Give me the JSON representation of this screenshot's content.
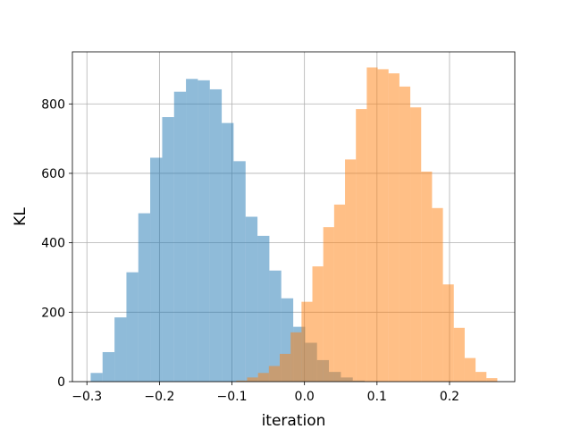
{
  "chart_data": {
    "type": "bar",
    "subtype": "histogram-overlay",
    "xlabel": "iteration",
    "ylabel": "KL",
    "xlim": [
      -0.32,
      0.29
    ],
    "ylim": [
      0,
      950
    ],
    "xticks": [
      -0.3,
      -0.2,
      -0.1,
      0.0,
      0.1,
      0.2
    ],
    "xtick_labels": [
      "−0.3",
      "−0.2",
      "−0.1",
      "0.0",
      "0.1",
      "0.2"
    ],
    "yticks": [
      0,
      200,
      400,
      600,
      800
    ],
    "ytick_labels": [
      "0",
      "200",
      "400",
      "600",
      "800"
    ],
    "grid": true,
    "series": [
      {
        "color": "#1f77b4",
        "opacity": 0.5,
        "bin_edges": [
          -0.2948,
          -0.2784,
          -0.2619,
          -0.2455,
          -0.2291,
          -0.2127,
          -0.1962,
          -0.1798,
          -0.1634,
          -0.147,
          -0.1305,
          -0.1141,
          -0.0977,
          -0.0812,
          -0.0648,
          -0.0484,
          -0.032,
          -0.0155,
          0.0009,
          0.0173,
          0.0337,
          0.0502,
          0.0666,
          0.083
        ],
        "counts": [
          25,
          85,
          185,
          315,
          485,
          645,
          762,
          835,
          872,
          868,
          842,
          745,
          635,
          475,
          420,
          320,
          240,
          158,
          112,
          62,
          28,
          12,
          3
        ]
      },
      {
        "color": "#ff7f0e",
        "opacity": 0.5,
        "bin_edges": [
          -0.0941,
          -0.0791,
          -0.0641,
          -0.0491,
          -0.0341,
          -0.0191,
          -0.0041,
          0.0109,
          0.0259,
          0.0409,
          0.0559,
          0.0709,
          0.0859,
          0.1009,
          0.1159,
          0.1309,
          0.1459,
          0.1609,
          0.1759,
          0.1909,
          0.2059,
          0.2209,
          0.2359,
          0.2509,
          0.2659
        ],
        "counts": [
          3,
          12,
          25,
          45,
          80,
          142,
          230,
          332,
          445,
          510,
          640,
          785,
          905,
          900,
          888,
          850,
          790,
          605,
          500,
          280,
          155,
          68,
          28,
          10
        ]
      }
    ]
  }
}
